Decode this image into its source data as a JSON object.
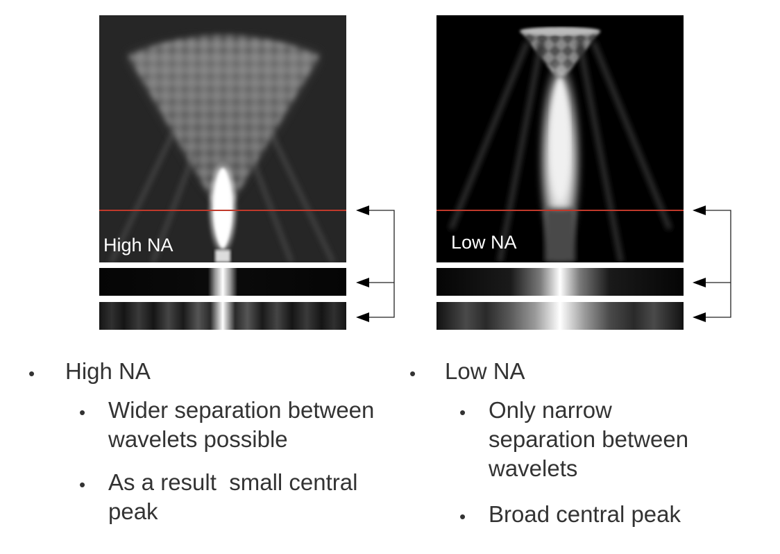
{
  "panels": {
    "high": {
      "label": "High NA"
    },
    "low": {
      "label": "Low NA"
    }
  },
  "colors": {
    "marker_line": "#c0392b",
    "image_bg_high": "#262626",
    "image_bg_low": "#000000",
    "text": "#333333"
  },
  "bullets": {
    "high": {
      "title": "High NA",
      "items": [
        {
          "line1": "Wider separation between",
          "line2": "wavelets possible",
          "line3": ""
        },
        {
          "line1": "As a result  small central",
          "line2": "peak",
          "line3": ""
        }
      ]
    },
    "low": {
      "title": "Low NA",
      "items": [
        {
          "line1": "Only narrow",
          "line2": "separation between",
          "line3": "wavelets"
        },
        {
          "line1": "Broad central peak",
          "line2": "",
          "line3": ""
        }
      ]
    }
  },
  "bullet_symbol": "•"
}
